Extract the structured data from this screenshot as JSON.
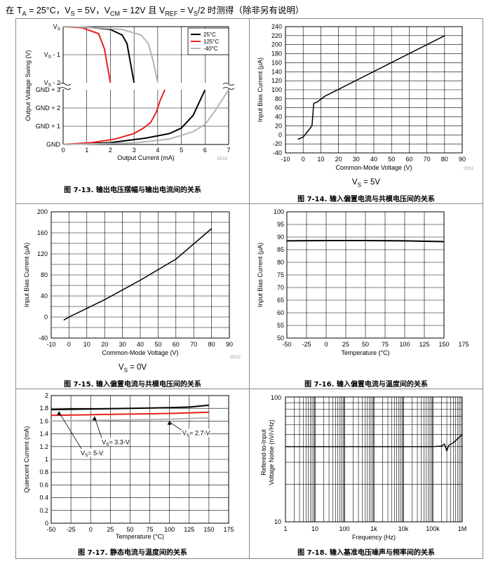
{
  "header": {
    "prefix": "在 T",
    "ta_sub": "A",
    "ta_val": " = 25°C，V",
    "vs_sub": "S",
    "vs_val": " = 5V，V",
    "vcm_sub": "CM",
    "vcm_val": " = 12V 且 V",
    "vref_sub": "REF",
    "vref_val": " = V",
    "vs2_sub": "S",
    "suffix": "/2 时测得（除非另有说明）"
  },
  "figures": {
    "f13": {
      "caption": "图 7-13. 输出电压摆幅与输出电流间的关系",
      "code": "D010"
    },
    "f14": {
      "caption": "图 7-14. 输入偏置电流与共模电压间的关系",
      "code": "D011",
      "cond_main": "V",
      "cond_sub": "S",
      "cond_val": " = 5V"
    },
    "f15": {
      "caption": "图 7-15. 输入偏置电流与共模电压间的关系",
      "code": "D012",
      "cond_main": "V",
      "cond_sub": "S",
      "cond_val": " = 0V"
    },
    "f16": {
      "caption": "图 7-16. 输入偏置电流与温度间的关系"
    },
    "f17": {
      "caption": "图 7-17. 静态电流与温度间的关系"
    },
    "f18": {
      "caption": "图 7-18. 输入基准电压噪声与频率间的关系"
    }
  },
  "chart_data": [
    {
      "id": "f13",
      "type": "line",
      "xlabel": "Output Current (mA)",
      "ylabel": "Output Voltage Swing (V)",
      "x_ticks": [
        "0",
        "1",
        "2",
        "3",
        "4",
        "5",
        "6",
        "7"
      ],
      "y_ticks_top": [
        "VS",
        "VS - 1",
        "VS - 2"
      ],
      "y_ticks_bottom": [
        "GND + 3",
        "GND + 2",
        "GND + 1",
        "GND"
      ],
      "xlim": [
        0,
        7
      ],
      "legend": [
        "25°C",
        "125°C",
        "-40°C"
      ],
      "colors": [
        "#000000",
        "#e8201c",
        "#b5b5b5"
      ],
      "series_top": [
        {
          "name": "25°C",
          "x": [
            0,
            1.2,
            2.0,
            2.5,
            2.7,
            2.85,
            3.0
          ],
          "y": [
            0,
            -0.03,
            -0.1,
            -0.3,
            -0.6,
            -1.3,
            -2.0
          ]
        },
        {
          "name": "125°C",
          "x": [
            0,
            0.8,
            1.5,
            1.75,
            1.85,
            2.0
          ],
          "y": [
            0,
            -0.04,
            -0.25,
            -0.8,
            -1.3,
            -2.0
          ]
        },
        {
          "name": "-40°C",
          "x": [
            0,
            1.0,
            2.5,
            3.3,
            3.6,
            3.8,
            4.0
          ],
          "y": [
            0,
            -0.02,
            -0.1,
            -0.3,
            -0.6,
            -1.2,
            -2.0
          ]
        }
      ],
      "series_bottom": [
        {
          "name": "25°C",
          "x": [
            0,
            2.0,
            3.5,
            4.5,
            5.0,
            5.5,
            6.0
          ],
          "y": [
            0,
            0.1,
            0.35,
            0.6,
            0.9,
            1.6,
            3.0
          ]
        },
        {
          "name": "125°C",
          "x": [
            0,
            1.2,
            2.2,
            3.0,
            3.4,
            3.7,
            3.95,
            4.1,
            4.3
          ],
          "y": [
            0,
            0.1,
            0.3,
            0.6,
            0.9,
            1.2,
            1.8,
            2.4,
            3.0
          ]
        },
        {
          "name": "-40°C",
          "x": [
            0,
            3.0,
            4.5,
            5.0,
            5.5,
            6.0,
            6.4,
            7.0
          ],
          "y": [
            0,
            0.08,
            0.3,
            0.5,
            0.7,
            1.1,
            1.8,
            3.0
          ]
        }
      ]
    },
    {
      "id": "f14",
      "type": "line",
      "xlabel": "Common-Mode Voltage (V)",
      "ylabel": "Input Bias Current (μA)",
      "xlim": [
        -10,
        90
      ],
      "ylim": [
        -40,
        240
      ],
      "x_ticks": [
        "-10",
        "0",
        "10",
        "20",
        "30",
        "40",
        "50",
        "60",
        "70",
        "80",
        "90"
      ],
      "y_ticks": [
        "-40",
        "-20",
        "0",
        "20",
        "40",
        "60",
        "80",
        "100",
        "120",
        "140",
        "160",
        "180",
        "200",
        "220",
        "240"
      ],
      "series": [
        {
          "name": "IB",
          "x": [
            -3,
            0,
            3,
            4,
            5,
            6,
            8,
            12,
            80
          ],
          "y": [
            -10,
            -5,
            10,
            15,
            20,
            70,
            73,
            85,
            220
          ]
        }
      ]
    },
    {
      "id": "f15",
      "type": "line",
      "xlabel": "Common-Mode Voltage (V)",
      "ylabel": "Input Bias Current (μA)",
      "xlim": [
        -10,
        90
      ],
      "ylim": [
        -40,
        200
      ],
      "x_ticks": [
        "-10",
        "0",
        "10",
        "20",
        "30",
        "40",
        "50",
        "60",
        "70",
        "80",
        "90"
      ],
      "y_ticks": [
        "-40",
        "-20",
        "0",
        "20",
        "40",
        "60",
        "80",
        "100",
        "120",
        "140",
        "160",
        "180",
        "200"
      ],
      "y_labels": [
        "-40",
        "",
        "0",
        "",
        "40",
        "",
        "80",
        "",
        "120",
        "",
        "160",
        "",
        "200"
      ],
      "series": [
        {
          "name": "IB",
          "x": [
            -3,
            0,
            20,
            40,
            60,
            80
          ],
          "y": [
            -6,
            0,
            33,
            70,
            110,
            168
          ]
        }
      ]
    },
    {
      "id": "f16",
      "type": "line",
      "xlabel": "Temperature (°C)",
      "ylabel": "Input Bias Current (μA)",
      "xlim": [
        -50,
        175
      ],
      "ylim": [
        50,
        100
      ],
      "x_ticks": [
        "-50",
        "-25",
        "0",
        "25",
        "50",
        "75",
        "100",
        "125",
        "150",
        "175"
      ],
      "y_ticks": [
        "50",
        "55",
        "60",
        "65",
        "70",
        "75",
        "80",
        "85",
        "90",
        "95",
        "100"
      ],
      "series": [
        {
          "name": "IB",
          "x": [
            -50,
            0,
            50,
            100,
            150
          ],
          "y": [
            88.5,
            88.6,
            88.6,
            88.5,
            88.2
          ]
        }
      ]
    },
    {
      "id": "f17",
      "type": "line",
      "xlabel": "Temperature (°C)",
      "ylabel": "Quiescent Current (mA)",
      "xlim": [
        -50,
        175
      ],
      "ylim": [
        0,
        2
      ],
      "x_ticks": [
        "-50",
        "-25",
        "0",
        "25",
        "50",
        "75",
        "100",
        "125",
        "150",
        "175"
      ],
      "y_ticks": [
        "0",
        "0.2",
        "0.4",
        "0.6",
        "0.8",
        "1",
        "1.2",
        "1.4",
        "1.6",
        "1.8",
        "2"
      ],
      "series": [
        {
          "name": "VS= 5-V",
          "color": "#000000",
          "x": [
            -50,
            0,
            50,
            100,
            125,
            150
          ],
          "y": [
            1.78,
            1.79,
            1.8,
            1.81,
            1.82,
            1.85
          ]
        },
        {
          "name": "VS= 3.3-V",
          "color": "#e8201c",
          "x": [
            -50,
            0,
            50,
            100,
            150
          ],
          "y": [
            1.69,
            1.7,
            1.71,
            1.72,
            1.74
          ]
        },
        {
          "name": "VS= 2.7-V",
          "color": "#b5b5b5",
          "x": [
            -50,
            0,
            50,
            100,
            150
          ],
          "y": [
            1.6,
            1.61,
            1.62,
            1.63,
            1.65
          ]
        }
      ],
      "annotations": [
        {
          "main": "V",
          "sub": "S",
          "rest": "= 5-V"
        },
        {
          "main": "V",
          "sub": "S",
          "rest": "= 3.3-V"
        },
        {
          "main": "V",
          "sub": "S",
          "rest": "= 2.7-V"
        }
      ]
    },
    {
      "id": "f18",
      "type": "line",
      "xscale": "log",
      "yscale": "log",
      "xlabel": "Frequency (Hz)",
      "ylabel_line1": "Refered-to-Input",
      "ylabel_line2": "Voltage Noise (nV/√Hz)",
      "xlim": [
        1,
        1000000
      ],
      "ylim": [
        10,
        100
      ],
      "x_ticks": [
        "1",
        "10",
        "100",
        "1k",
        "10k",
        "100k",
        "1M"
      ],
      "y_ticks": [
        "10",
        "100"
      ],
      "series": [
        {
          "name": "noise",
          "x": [
            1,
            10,
            100,
            1000,
            10000,
            100000,
            200000,
            250000,
            300000,
            350000,
            500000,
            1000000
          ],
          "y": [
            40,
            40,
            40,
            40,
            40,
            40,
            40.5,
            42,
            37,
            41,
            43,
            50
          ]
        }
      ]
    }
  ]
}
